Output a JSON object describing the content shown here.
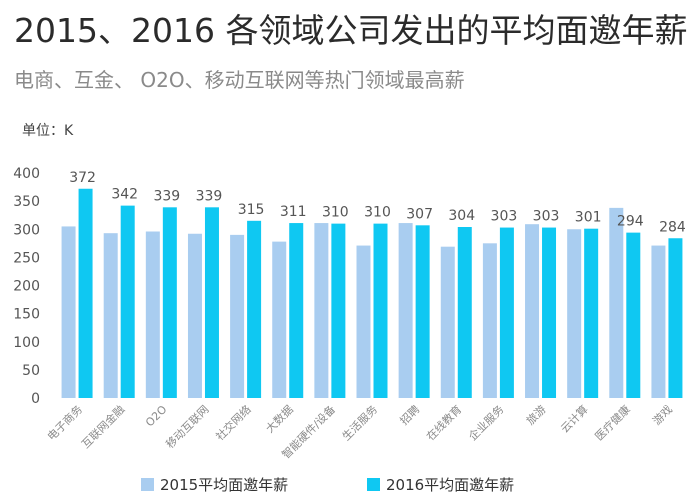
{
  "header": {
    "title": "2015、2016 各领域公司发出的平均面邀年薪",
    "subtitle": "电商、互金、 O2O、移动互联网等热门领域最高薪",
    "unit": "单位：K"
  },
  "colors": {
    "series_2015": "#a9cdf0",
    "series_2016": "#0fc8f2",
    "axis_text": "#555555",
    "category_text": "#8a8a8a",
    "value_label": "#555555"
  },
  "chart_data": {
    "type": "bar",
    "title": "2015、2016 各领域公司发出的平均面邀年薪",
    "subtitle": "电商、互金、 O2O、移动互联网等热门领域最高薪",
    "ylabel": "单位：K",
    "ylim": [
      0,
      400
    ],
    "yticks": [
      0,
      50,
      100,
      150,
      200,
      250,
      300,
      350,
      400
    ],
    "grid": false,
    "legend_position": "bottom",
    "categories": [
      "电子商务",
      "互联网金融",
      "O2O",
      "移动互联网",
      "社交网络",
      "大数据",
      "智能硬件/设备",
      "生活服务",
      "招聘",
      "在线教育",
      "企业服务",
      "旅游",
      "云计算",
      "医疗健康",
      "游戏"
    ],
    "series": [
      {
        "name": "2015平均面邀年薪",
        "values": [
          305,
          293,
          296,
          292,
          290,
          278,
          311,
          271,
          311,
          269,
          275,
          309,
          300,
          338,
          271
        ]
      },
      {
        "name": "2016平均面邀年薪",
        "values": [
          372,
          342,
          339,
          339,
          315,
          311,
          310,
          310,
          307,
          304,
          303,
          303,
          301,
          294,
          284
        ]
      }
    ],
    "data_labels": [
      "372",
      "342",
      "339",
      "339",
      "315",
      "311",
      "310",
      "310",
      "307",
      "304",
      "303",
      "303",
      "301",
      "294",
      "284"
    ]
  }
}
